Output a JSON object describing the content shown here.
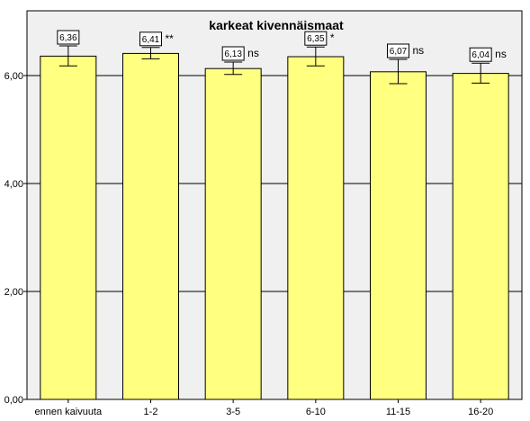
{
  "chart_data": {
    "type": "bar",
    "title": "karkeat kivennäismaat",
    "xlabel": "",
    "ylabel": "",
    "categories": [
      "ennen kaivuuta",
      "1-2",
      "3-5",
      "6-10",
      "11-15",
      "16-20"
    ],
    "values": [
      6.36,
      6.41,
      6.13,
      6.35,
      6.07,
      6.04
    ],
    "value_labels": [
      "6,36",
      "6,41",
      "6,13",
      "6,35",
      "6,07",
      "6,04"
    ],
    "error_low": [
      6.18,
      6.31,
      6.02,
      6.18,
      5.85,
      5.86
    ],
    "error_high": [
      6.55,
      6.52,
      6.25,
      6.53,
      6.3,
      6.23
    ],
    "significance": [
      "",
      "**",
      "ns",
      "*",
      "ns",
      "ns"
    ],
    "ylim": [
      0,
      7.2
    ],
    "yticks": [
      0,
      2,
      4,
      6
    ],
    "ytick_labels": [
      "0,00",
      "2,00",
      "4,00",
      "6,00"
    ],
    "grid": true,
    "colors": {
      "bar_fill": "#ffff80",
      "bar_stroke": "#000000",
      "plot_bg": "#f0f0f0",
      "gridline": "#000000"
    }
  }
}
